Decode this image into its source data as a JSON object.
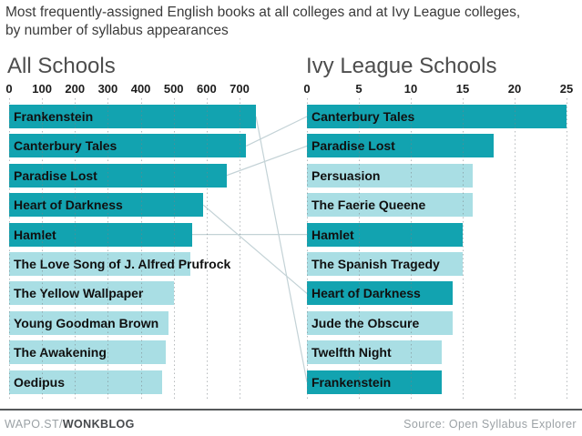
{
  "title": {
    "line1": "Most frequently-assigned English books at all colleges and at Ivy League colleges,",
    "line2": "by number of syllabus appearances"
  },
  "colors": {
    "dark_teal": "#12a3b0",
    "light_teal": "#a9dee4",
    "connector": "#c3d2d6",
    "grid": "#7a8186",
    "footer_rule": "#55585a"
  },
  "chart_data": [
    {
      "type": "bar",
      "orientation": "horizontal",
      "title": "All Schools",
      "xlabel": "syllabus appearances",
      "xlim": [
        0,
        700
      ],
      "xticks": [
        0,
        100,
        200,
        300,
        400,
        500,
        600,
        700
      ],
      "grid": true,
      "categories": [
        "Frankenstein",
        "Canterbury Tales",
        "Paradise Lost",
        "Heart of Darkness",
        "Hamlet",
        "The Love Song of J. Alfred Prufrock",
        "The Yellow Wallpaper",
        "Young Goodman Brown",
        "The Awakening",
        "Oedipus"
      ],
      "values": [
        750,
        720,
        660,
        590,
        555,
        550,
        500,
        485,
        475,
        465
      ],
      "highlighted": [
        true,
        true,
        true,
        true,
        true,
        false,
        false,
        false,
        false,
        false
      ]
    },
    {
      "type": "bar",
      "orientation": "horizontal",
      "title": "Ivy League Schools",
      "xlabel": "syllabus appearances",
      "xlim": [
        0,
        25
      ],
      "xticks": [
        0,
        5,
        10,
        15,
        20,
        25
      ],
      "grid": true,
      "categories": [
        "Canterbury Tales",
        "Paradise Lost",
        "Persuasion",
        "The Faerie Queene",
        "Hamlet",
        "The Spanish Tragedy",
        "Heart of Darkness",
        "Jude the Obscure",
        "Twelfth Night",
        "Frankenstein"
      ],
      "values": [
        25,
        18,
        16,
        16,
        15,
        15,
        14,
        14,
        13,
        13
      ],
      "highlighted": [
        true,
        true,
        false,
        false,
        true,
        false,
        true,
        false,
        false,
        true
      ]
    }
  ],
  "connections": [
    {
      "book": "Frankenstein",
      "left_index": 0,
      "right_index": 9
    },
    {
      "book": "Canterbury Tales",
      "left_index": 1,
      "right_index": 0
    },
    {
      "book": "Paradise Lost",
      "left_index": 2,
      "right_index": 1
    },
    {
      "book": "Heart of Darkness",
      "left_index": 3,
      "right_index": 6
    },
    {
      "book": "Hamlet",
      "left_index": 4,
      "right_index": 4
    }
  ],
  "footer": {
    "brand_prefix": "WAPO.ST/",
    "brand_bold": "WONKBLOG",
    "source": "Source: Open Syllabus Explorer"
  }
}
